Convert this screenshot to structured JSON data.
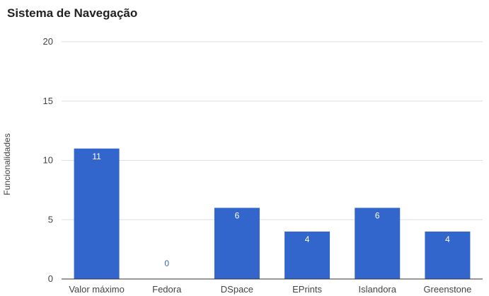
{
  "chart_data": {
    "type": "bar",
    "title": "Sistema de Navegação",
    "xlabel": "",
    "ylabel": "Funcionalidades",
    "categories": [
      "Valor máximo",
      "Fedora",
      "DSpace",
      "EPrints",
      "Islandora",
      "Greenstone"
    ],
    "values": [
      11,
      0,
      6,
      4,
      6,
      4
    ],
    "ylim": [
      0,
      20
    ],
    "yticks": [
      0,
      5,
      10,
      15,
      20
    ],
    "grid": true,
    "legend": "none",
    "colors": {
      "bar": "#3366cc",
      "label_inside": "#ffffff",
      "label_outside": "#3366cc",
      "grid": "#dddddd",
      "baseline": "#333333"
    }
  }
}
